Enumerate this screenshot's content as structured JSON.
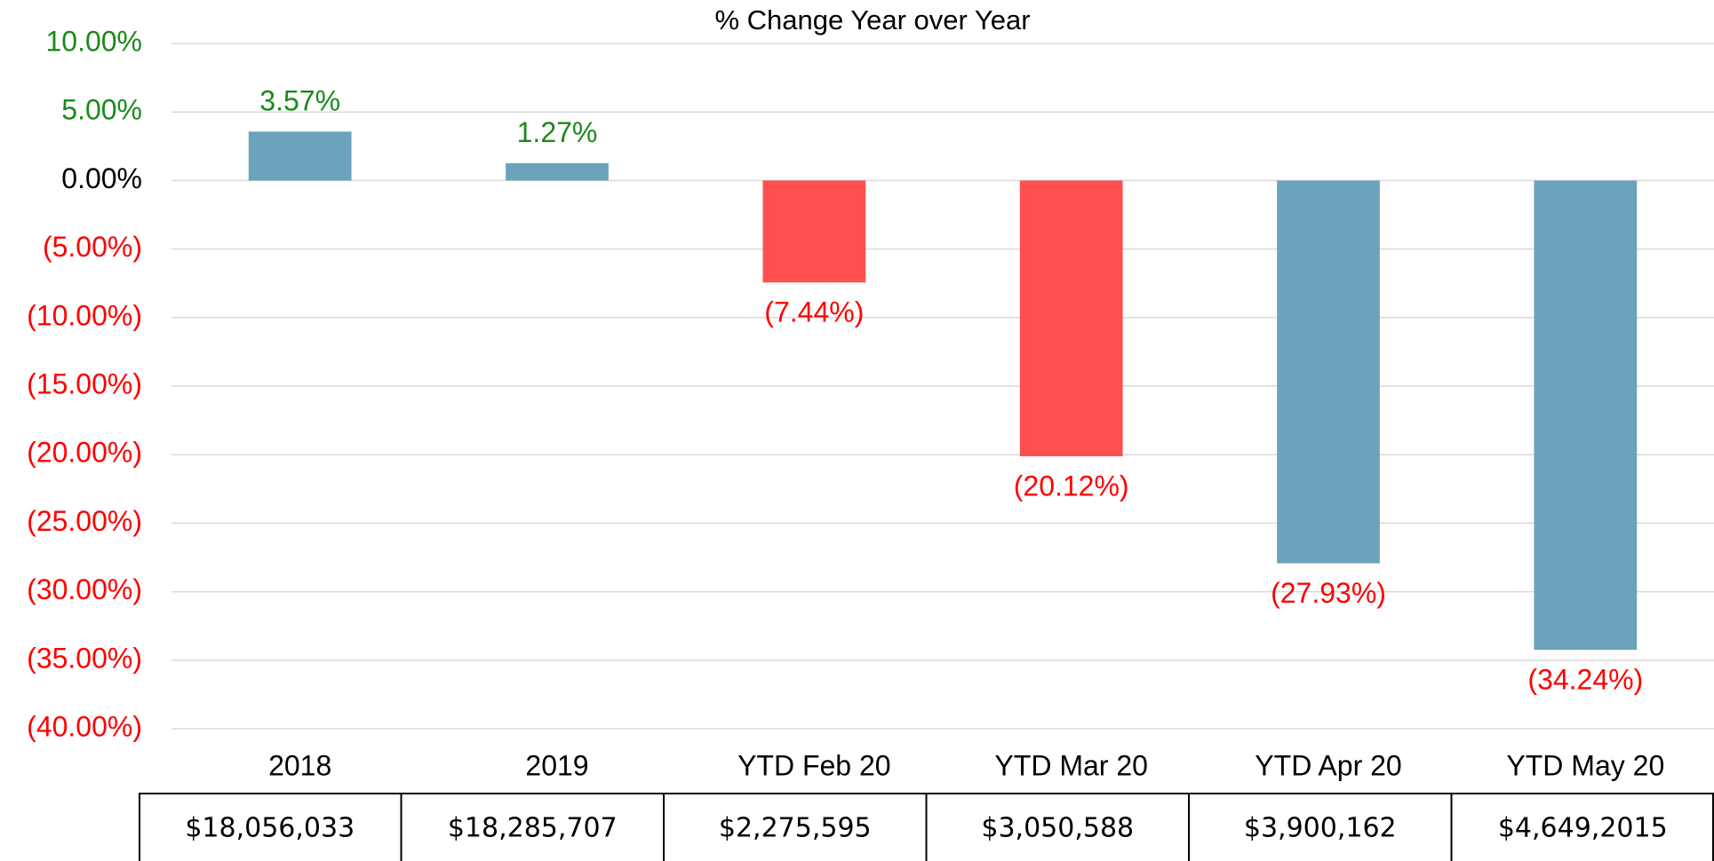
{
  "chart_data": {
    "type": "bar",
    "title": "% Change Year over Year",
    "categories": [
      "2018",
      "2019",
      "YTD Feb 20",
      "YTD Mar 20",
      "YTD Apr 20",
      "YTD May 20"
    ],
    "values": [
      3.57,
      1.27,
      -7.44,
      -20.12,
      -27.93,
      -34.24
    ],
    "value_labels": [
      "3.57%",
      "1.27%",
      "(7.44%)",
      "(20.12%)",
      "(27.93%)",
      "(34.24%)"
    ],
    "colors": [
      "#6aa3bb",
      "#6aa3bb",
      "#ff5050",
      "#ff5050",
      "#6aa3bb",
      "#6aa3bb"
    ],
    "label_colors": {
      "positive": "#1a8a1a",
      "zero": "#000000",
      "negative": "#ff0000"
    },
    "ylim": [
      -40,
      10
    ],
    "yticks": [
      {
        "value": -40,
        "label": "(40.00%)"
      },
      {
        "value": -35,
        "label": "(35.00%)"
      },
      {
        "value": -30,
        "label": "(30.00%)"
      },
      {
        "value": -25,
        "label": "(25.00%)"
      },
      {
        "value": -20,
        "label": "(20.00%)"
      },
      {
        "value": -15,
        "label": "(15.00%)"
      },
      {
        "value": -10,
        "label": "(10.00%)"
      },
      {
        "value": -5,
        "label": "(5.00%)"
      },
      {
        "value": 0,
        "label": "0.00%"
      },
      {
        "value": 5,
        "label": "5.00%"
      },
      {
        "value": 10,
        "label": "10.00%"
      }
    ],
    "grid": true,
    "table_row": [
      "$18,056,033",
      "$18,285,707",
      "$2,275,595",
      "$3,050,588",
      "$3,900,162",
      "$4,649,2015"
    ]
  }
}
